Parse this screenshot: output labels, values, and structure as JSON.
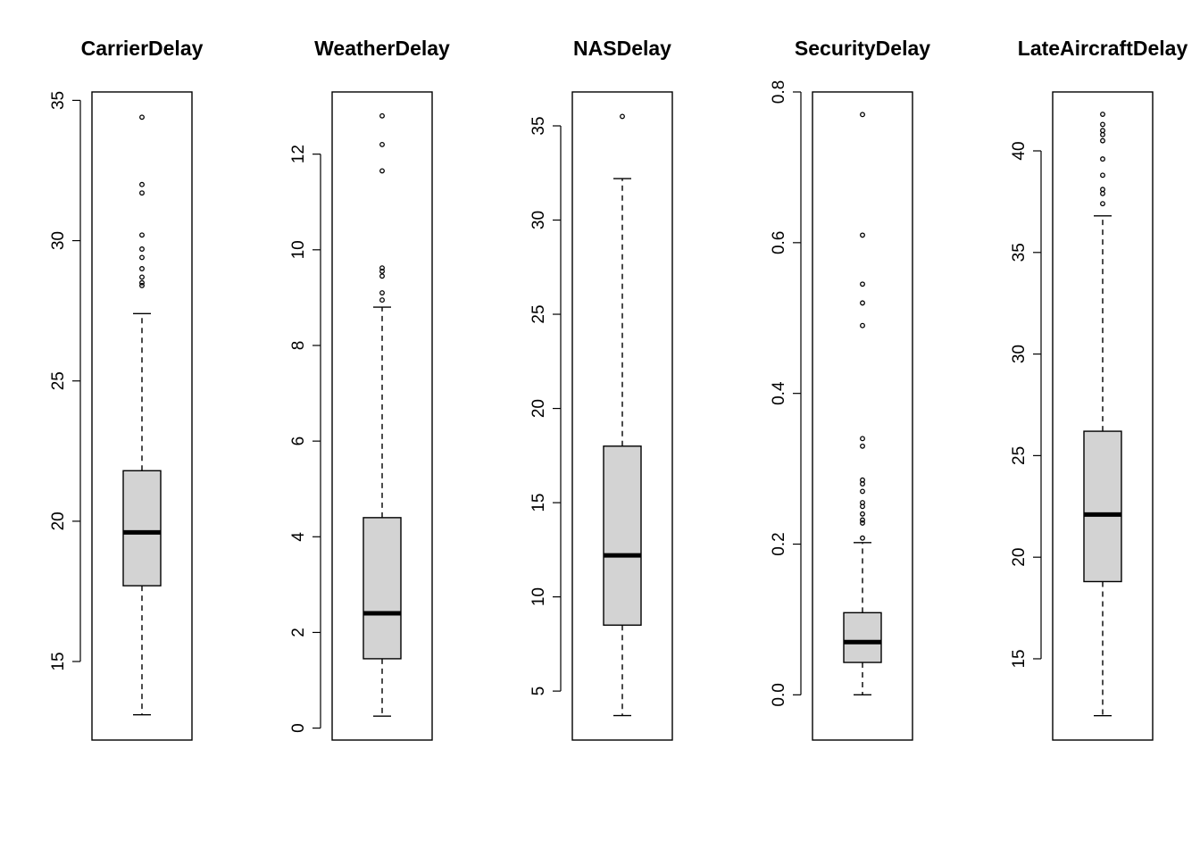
{
  "chart_data": [
    {
      "type": "boxplot",
      "title": "CarrierDelay",
      "ylim": [
        12.2,
        35.3
      ],
      "ticks": [
        15,
        20,
        25,
        30,
        35
      ],
      "tick_labels": [
        "15",
        "20",
        "25",
        "30",
        "35"
      ],
      "whisker_low": 13.1,
      "q1": 17.7,
      "median": 19.6,
      "q3": 21.8,
      "whisker_high": 27.4,
      "outliers": [
        28.4,
        28.5,
        28.7,
        29.0,
        29.4,
        29.7,
        30.2,
        31.7,
        32.0,
        34.4
      ]
    },
    {
      "type": "boxplot",
      "title": "WeatherDelay",
      "ylim": [
        -0.25,
        13.3
      ],
      "ticks": [
        0,
        2,
        4,
        6,
        8,
        10,
        12
      ],
      "tick_labels": [
        "0",
        "2",
        "4",
        "6",
        "8",
        "10",
        "12"
      ],
      "whisker_low": 0.25,
      "q1": 1.45,
      "median": 2.4,
      "q3": 4.4,
      "whisker_high": 8.8,
      "outliers": [
        8.95,
        9.1,
        9.45,
        9.55,
        9.62,
        11.65,
        12.2,
        12.8
      ]
    },
    {
      "type": "boxplot",
      "title": "NASDelay",
      "ylim": [
        2.4,
        36.8
      ],
      "ticks": [
        5,
        10,
        15,
        20,
        25,
        30,
        35
      ],
      "tick_labels": [
        "5",
        "10",
        "15",
        "20",
        "25",
        "30",
        "35"
      ],
      "whisker_low": 3.7,
      "q1": 8.5,
      "median": 12.2,
      "q3": 18.0,
      "whisker_high": 32.2,
      "outliers": [
        35.5
      ]
    },
    {
      "type": "boxplot",
      "title": "SecurityDelay",
      "ylim": [
        -0.06,
        0.8
      ],
      "ticks": [
        0.0,
        0.2,
        0.4,
        0.6,
        0.8
      ],
      "tick_labels": [
        "0.0",
        "0.2",
        "0.4",
        "0.6",
        "0.8"
      ],
      "whisker_low": 0.0,
      "q1": 0.043,
      "median": 0.07,
      "q3": 0.109,
      "whisker_high": 0.202,
      "outliers": [
        0.208,
        0.228,
        0.232,
        0.24,
        0.25,
        0.255,
        0.27,
        0.28,
        0.285,
        0.33,
        0.34,
        0.49,
        0.52,
        0.545,
        0.61,
        0.77
      ]
    },
    {
      "type": "boxplot",
      "title": "LateAircraftDelay",
      "ylim": [
        11.0,
        42.9
      ],
      "ticks": [
        15,
        20,
        25,
        30,
        35,
        40
      ],
      "tick_labels": [
        "15",
        "20",
        "25",
        "30",
        "35",
        "40"
      ],
      "whisker_low": 12.2,
      "q1": 18.8,
      "median": 22.1,
      "q3": 26.2,
      "whisker_high": 36.8,
      "outliers": [
        37.4,
        37.9,
        38.1,
        38.8,
        39.6,
        40.5,
        40.8,
        41.0,
        41.3,
        41.8
      ]
    }
  ]
}
